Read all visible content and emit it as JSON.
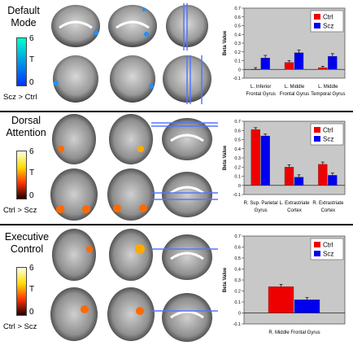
{
  "panels": [
    {
      "title_lines": [
        "Default",
        "Mode"
      ],
      "colorbar": {
        "max": "6",
        "label": "T",
        "min": "0",
        "contrast": "Scz > Ctrl",
        "gradient": [
          "#00ffcc",
          "#0033ff"
        ],
        "blob_color": "#1e90ff"
      }
    },
    {
      "title_lines": [
        "Dorsal",
        "Attention"
      ],
      "colorbar": {
        "max": "6",
        "label": "T",
        "min": "0",
        "contrast": "Ctrl > Scz",
        "gradient": [
          "#ffffe0",
          "#ffdd00",
          "#ff3300",
          "#220000"
        ],
        "blob_color": "#ff6a00"
      }
    },
    {
      "title_lines": [
        "Executive",
        "Control"
      ],
      "colorbar": {
        "max": "6",
        "label": "T",
        "min": "0",
        "contrast": "Ctrl > Scz",
        "gradient": [
          "#ffffe0",
          "#ffdd00",
          "#ff3300",
          "#220000"
        ],
        "blob_color": "#ff6a00"
      }
    }
  ],
  "chart_data": [
    {
      "type": "bar",
      "ylabel": "Beta Value",
      "ylim": [
        -0.1,
        0.7
      ],
      "yticks": [
        "0.7",
        "0.6",
        "0.5",
        "0.4",
        "0.3",
        "0.2",
        "0.1",
        "0",
        "-0.1"
      ],
      "categories": [
        [
          "L. Inferior",
          "Frontal Gyrus"
        ],
        [
          "L. Middle",
          "Frontal Gyrus"
        ],
        [
          "L. Middle",
          "Temporal Gyrus"
        ]
      ],
      "series": [
        {
          "name": "Ctrl",
          "color": "#ee0000",
          "values": [
            0.0,
            0.08,
            0.02
          ],
          "errors": [
            0.02,
            0.02,
            0.015
          ]
        },
        {
          "name": "Scz",
          "color": "#0000ee",
          "values": [
            0.13,
            0.19,
            0.15
          ],
          "errors": [
            0.03,
            0.03,
            0.03
          ]
        }
      ],
      "legend": "top-right"
    },
    {
      "type": "bar",
      "ylabel": "Beta Value",
      "ylim": [
        -0.1,
        0.7
      ],
      "yticks": [
        "0.7",
        "0.6",
        "0.5",
        "0.4",
        "0.3",
        "0.2",
        "0.1",
        "0",
        "-0.1"
      ],
      "categories": [
        [
          "R. Sup. Parietal",
          "Gyrus"
        ],
        [
          "L. Extrastriate",
          "Cortex"
        ],
        [
          "R. Extrastriate",
          "Cortex"
        ]
      ],
      "series": [
        {
          "name": "Ctrl",
          "color": "#ee0000",
          "values": [
            0.61,
            0.2,
            0.23
          ],
          "errors": [
            0.02,
            0.025,
            0.025
          ]
        },
        {
          "name": "Scz",
          "color": "#0000ee",
          "values": [
            0.54,
            0.09,
            0.11
          ],
          "errors": [
            0.02,
            0.025,
            0.025
          ]
        }
      ],
      "legend": "top-right"
    },
    {
      "type": "bar",
      "ylabel": "Beta Value",
      "ylim": [
        -0.1,
        0.7
      ],
      "yticks": [
        "0.7",
        "0.6",
        "0.5",
        "0.4",
        "0.3",
        "0.2",
        "0.1",
        "0",
        "-0.1"
      ],
      "categories": [
        [
          "R. Middle Frontal Gyrus"
        ]
      ],
      "series": [
        {
          "name": "Ctrl",
          "color": "#ee0000",
          "values": [
            0.24
          ],
          "errors": [
            0.02
          ]
        },
        {
          "name": "Scz",
          "color": "#0000ee",
          "values": [
            0.12
          ],
          "errors": [
            0.02
          ]
        }
      ],
      "legend": "top-right"
    }
  ]
}
